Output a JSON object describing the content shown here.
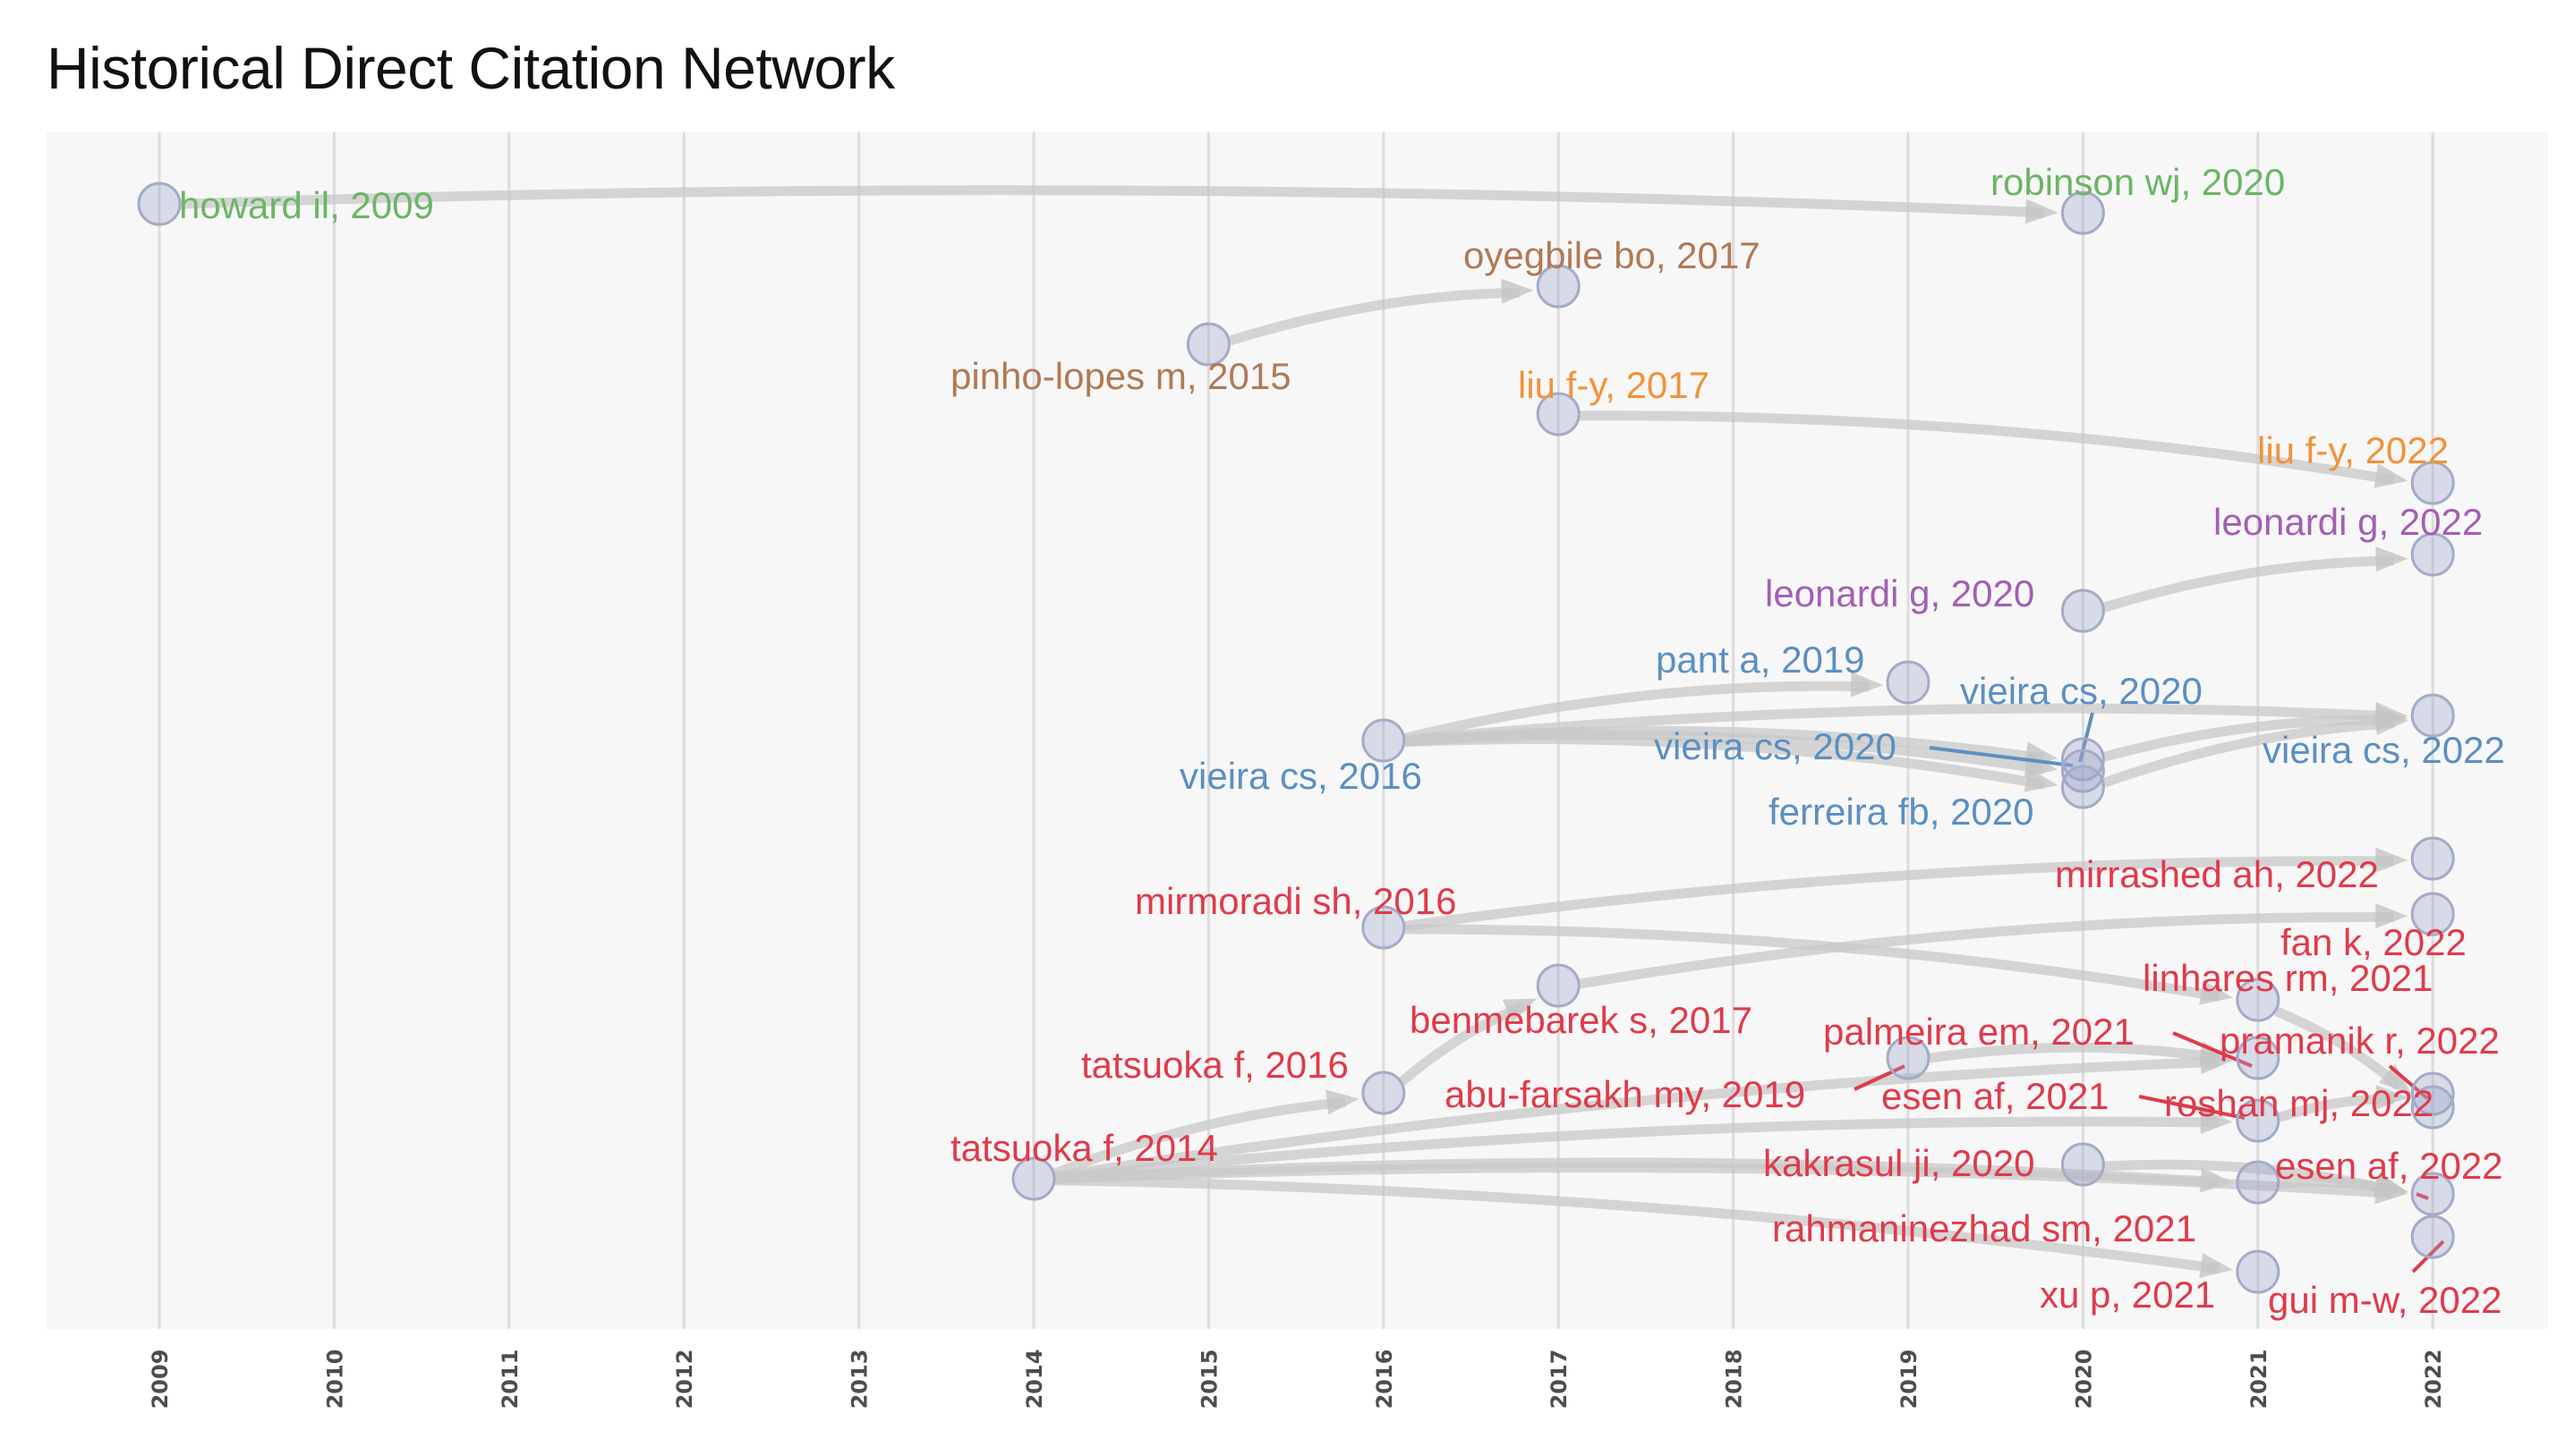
{
  "chart_data": {
    "type": "network",
    "title": "Historical Direct Citation Network",
    "xlabel": "",
    "ylabel": "",
    "x_ticks": [
      "2009",
      "2010",
      "2011",
      "2012",
      "2013",
      "2014",
      "2015",
      "2016",
      "2017",
      "2018",
      "2019",
      "2020",
      "2021",
      "2022"
    ],
    "xlim": [
      2009,
      2022
    ],
    "grid": true,
    "colors": {
      "green": "#6cb565",
      "brown": "#b07a55",
      "orange": "#f2923a",
      "purple": "#a35fb4",
      "blue": "#5b8fc2",
      "red": "#e03a4b",
      "node": "#9ca3c9",
      "edge": "#c8c8c8",
      "panel": "#f7f7f7",
      "grid": "#dcdcdc"
    },
    "nodes": [
      {
        "id": "howard2009",
        "label": "howard il, 2009",
        "year": 2009,
        "cluster": "green"
      },
      {
        "id": "robinson2020",
        "label": "robinson wj, 2020",
        "year": 2020,
        "cluster": "green"
      },
      {
        "id": "oyegbile2017",
        "label": "oyegbile bo, 2017",
        "year": 2017,
        "cluster": "brown"
      },
      {
        "id": "pinho2015",
        "label": "pinho-lopes m, 2015",
        "year": 2015,
        "cluster": "brown"
      },
      {
        "id": "liu2017",
        "label": "liu f-y, 2017",
        "year": 2017,
        "cluster": "orange"
      },
      {
        "id": "liu2022",
        "label": "liu f-y, 2022",
        "year": 2022,
        "cluster": "orange"
      },
      {
        "id": "leonardi2022",
        "label": "leonardi g, 2022",
        "year": 2022,
        "cluster": "purple"
      },
      {
        "id": "leonardi2020",
        "label": "leonardi g, 2020",
        "year": 2020,
        "cluster": "purple"
      },
      {
        "id": "pant2019",
        "label": "pant a, 2019",
        "year": 2019,
        "cluster": "blue"
      },
      {
        "id": "vieira2020a",
        "label": "vieira cs, 2020",
        "year": 2020,
        "cluster": "blue"
      },
      {
        "id": "vieira2016",
        "label": "vieira cs, 2016",
        "year": 2016,
        "cluster": "blue"
      },
      {
        "id": "vieira2020b",
        "label": "vieira cs, 2020",
        "year": 2020,
        "cluster": "blue"
      },
      {
        "id": "vieira2022",
        "label": "vieira cs, 2022",
        "year": 2022,
        "cluster": "blue"
      },
      {
        "id": "ferreira2020",
        "label": "ferreira fb, 2020",
        "year": 2020,
        "cluster": "blue"
      },
      {
        "id": "mirrashed2022",
        "label": "mirrashed ah, 2022",
        "year": 2022,
        "cluster": "red"
      },
      {
        "id": "mirmoradi2016",
        "label": "mirmoradi sh, 2016",
        "year": 2016,
        "cluster": "red"
      },
      {
        "id": "fan2022",
        "label": "fan k, 2022",
        "year": 2022,
        "cluster": "red"
      },
      {
        "id": "linhares2021",
        "label": "linhares rm, 2021",
        "year": 2021,
        "cluster": "red"
      },
      {
        "id": "benmebarek2017",
        "label": "benmebarek s, 2017",
        "year": 2017,
        "cluster": "red"
      },
      {
        "id": "palmeira2021",
        "label": "palmeira em, 2021",
        "year": 2021,
        "cluster": "red"
      },
      {
        "id": "pramanik2022",
        "label": "pramanik r, 2022",
        "year": 2022,
        "cluster": "red"
      },
      {
        "id": "tatsuoka2016",
        "label": "tatsuoka f, 2016",
        "year": 2016,
        "cluster": "red"
      },
      {
        "id": "abufarsakh2019",
        "label": "abu-farsakh my, 2019",
        "year": 2019,
        "cluster": "red"
      },
      {
        "id": "esen2021",
        "label": "esen af, 2021",
        "year": 2021,
        "cluster": "red"
      },
      {
        "id": "roshan2022",
        "label": "roshan mj, 2022",
        "year": 2022,
        "cluster": "red"
      },
      {
        "id": "tatsuoka2014",
        "label": "tatsuoka f, 2014",
        "year": 2014,
        "cluster": "red"
      },
      {
        "id": "kakrasul2020",
        "label": "kakrasul ji, 2020",
        "year": 2020,
        "cluster": "red"
      },
      {
        "id": "esen2022",
        "label": "esen af, 2022",
        "year": 2022,
        "cluster": "red"
      },
      {
        "id": "rahmaninezhad2021",
        "label": "rahmaninezhad sm, 2021",
        "year": 2021,
        "cluster": "red"
      },
      {
        "id": "xu2021",
        "label": "xu p, 2021",
        "year": 2021,
        "cluster": "red"
      },
      {
        "id": "gui2022",
        "label": "gui m-w, 2022",
        "year": 2022,
        "cluster": "red"
      }
    ],
    "edges": [
      {
        "from": "howard2009",
        "to": "robinson2020"
      },
      {
        "from": "pinho2015",
        "to": "oyegbile2017"
      },
      {
        "from": "liu2017",
        "to": "liu2022"
      },
      {
        "from": "leonardi2020",
        "to": "leonardi2022"
      },
      {
        "from": "vieira2016",
        "to": "pant2019"
      },
      {
        "from": "vieira2016",
        "to": "vieira2020a"
      },
      {
        "from": "vieira2016",
        "to": "vieira2020b"
      },
      {
        "from": "vieira2016",
        "to": "ferreira2020"
      },
      {
        "from": "vieira2016",
        "to": "vieira2022"
      },
      {
        "from": "vieira2020a",
        "to": "vieira2022"
      },
      {
        "from": "ferreira2020",
        "to": "vieira2022"
      },
      {
        "from": "mirmoradi2016",
        "to": "mirrashed2022"
      },
      {
        "from": "mirmoradi2016",
        "to": "linhares2021"
      },
      {
        "from": "benmebarek2017",
        "to": "fan2022"
      },
      {
        "from": "tatsuoka2014",
        "to": "tatsuoka2016"
      },
      {
        "from": "tatsuoka2016",
        "to": "benmebarek2017"
      },
      {
        "from": "tatsuoka2014",
        "to": "esen2021"
      },
      {
        "from": "tatsuoka2014",
        "to": "palmeira2021"
      },
      {
        "from": "tatsuoka2014",
        "to": "rahmaninezhad2021"
      },
      {
        "from": "tatsuoka2014",
        "to": "xu2021"
      },
      {
        "from": "tatsuoka2014",
        "to": "esen2022"
      },
      {
        "from": "abufarsakh2019",
        "to": "palmeira2021"
      },
      {
        "from": "linhares2021",
        "to": "roshan2022"
      },
      {
        "from": "kakrasul2020",
        "to": "esen2022"
      },
      {
        "from": "rahmaninezhad2021",
        "to": "esen2022"
      },
      {
        "from": "esen2021",
        "to": "pramanik2022"
      }
    ]
  }
}
